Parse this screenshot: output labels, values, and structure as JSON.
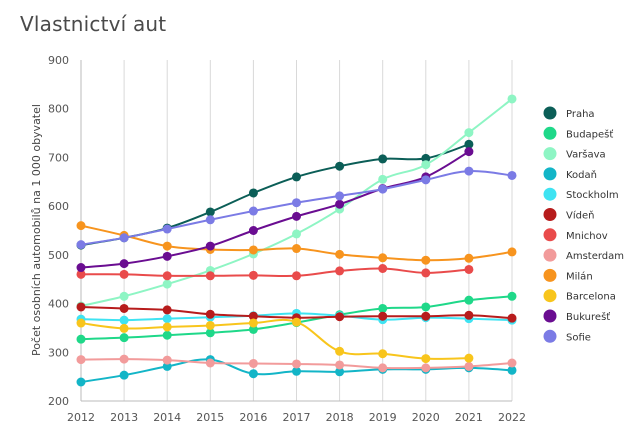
{
  "title": "Vlastnictví aut",
  "chart_data": {
    "type": "line",
    "title": "Vlastnictví aut",
    "xlabel": "",
    "ylabel": "Počet osobních automobilů na 1 000 obyvatel",
    "x": [
      2012,
      2013,
      2014,
      2015,
      2016,
      2017,
      2018,
      2019,
      2020,
      2021,
      2022
    ],
    "ylim": [
      200,
      900
    ],
    "yticks": [
      200,
      300,
      400,
      500,
      600,
      700,
      800,
      900
    ],
    "grid": "vertical",
    "legend": "right",
    "series": [
      {
        "name": "Praha",
        "color": "#0b5e57",
        "values": [
          520,
          535,
          555,
          588,
          627,
          660,
          682,
          697,
          698,
          727,
          null
        ]
      },
      {
        "name": "Budapešť",
        "color": "#1fd889",
        "values": [
          327,
          330,
          335,
          340,
          347,
          361,
          377,
          390,
          393,
          407,
          415
        ]
      },
      {
        "name": "Varšava",
        "color": "#8ef5c4",
        "values": [
          395,
          415,
          440,
          468,
          502,
          543,
          594,
          655,
          685,
          751,
          820
        ]
      },
      {
        "name": "Kodaň",
        "color": "#13b5c7",
        "values": [
          239,
          253,
          271,
          285,
          256,
          261,
          260,
          265,
          265,
          268,
          263
        ]
      },
      {
        "name": "Stockholm",
        "color": "#3fe3f2",
        "values": [
          368,
          366,
          369,
          372,
          375,
          380,
          375,
          367,
          371,
          369,
          366
        ]
      },
      {
        "name": "Vídeň",
        "color": "#b71c1c",
        "values": [
          393,
          390,
          387,
          378,
          374,
          371,
          373,
          374,
          374,
          376,
          370
        ]
      },
      {
        "name": "Mnichov",
        "color": "#e94b4b",
        "values": [
          460,
          460,
          457,
          457,
          458,
          457,
          467,
          472,
          463,
          470,
          null
        ]
      },
      {
        "name": "Amsterdam",
        "color": "#f29b9b",
        "values": [
          285,
          286,
          284,
          278,
          277,
          276,
          274,
          268,
          268,
          271,
          278
        ]
      },
      {
        "name": "Milán",
        "color": "#f7941e",
        "values": [
          560,
          540,
          518,
          511,
          510,
          513,
          501,
          494,
          489,
          493,
          506
        ]
      },
      {
        "name": "Barcelona",
        "color": "#f8c51c",
        "values": [
          360,
          349,
          352,
          355,
          360,
          362,
          302,
          297,
          287,
          288,
          null
        ]
      },
      {
        "name": "Bukurešť",
        "color": "#6a0d91",
        "values": [
          474,
          482,
          497,
          518,
          550,
          579,
          604,
          636,
          660,
          712,
          null
        ]
      },
      {
        "name": "Sofie",
        "color": "#7b7be5",
        "values": [
          521,
          535,
          553,
          572,
          590,
          607,
          621,
          635,
          654,
          672,
          663
        ]
      }
    ]
  }
}
